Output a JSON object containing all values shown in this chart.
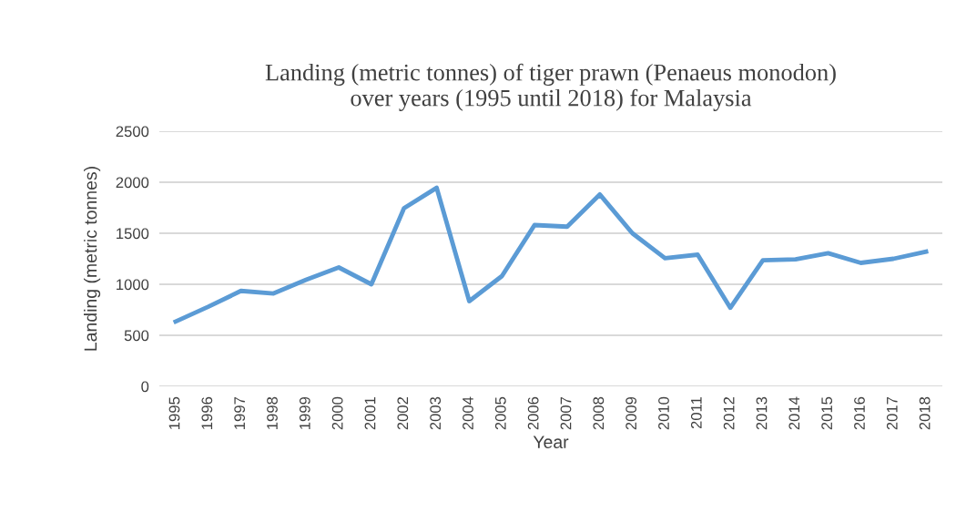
{
  "chart_data": {
    "type": "line",
    "title": "Landing (metric tonnes) of tiger prawn (Penaeus monodon)\nover years (1995 until 2018) for Malaysia",
    "xlabel": "Year",
    "ylabel": "Landing (metric tonnes)",
    "categories": [
      "1995",
      "1996",
      "1997",
      "1998",
      "1999",
      "2000",
      "2001",
      "2002",
      "2003",
      "2004",
      "2005",
      "2006",
      "2007",
      "2008",
      "2009",
      "2010",
      "2011",
      "2012",
      "2013",
      "2014",
      "2015",
      "2016",
      "2017",
      "2018"
    ],
    "series": [
      {
        "color": "#5b9bd5",
        "values": [
          635,
          780,
          935,
          910,
          1045,
          1165,
          1000,
          1745,
          1945,
          835,
          1080,
          1580,
          1565,
          1880,
          1500,
          1255,
          1290,
          770,
          1235,
          1245,
          1305,
          1210,
          1250,
          1320
        ]
      }
    ],
    "ylim": [
      0,
      2500
    ],
    "yticks": [
      0,
      500,
      1000,
      1500,
      2000,
      2500
    ],
    "grid": "y",
    "marker": "none",
    "line_style": "solid",
    "legend": false
  }
}
